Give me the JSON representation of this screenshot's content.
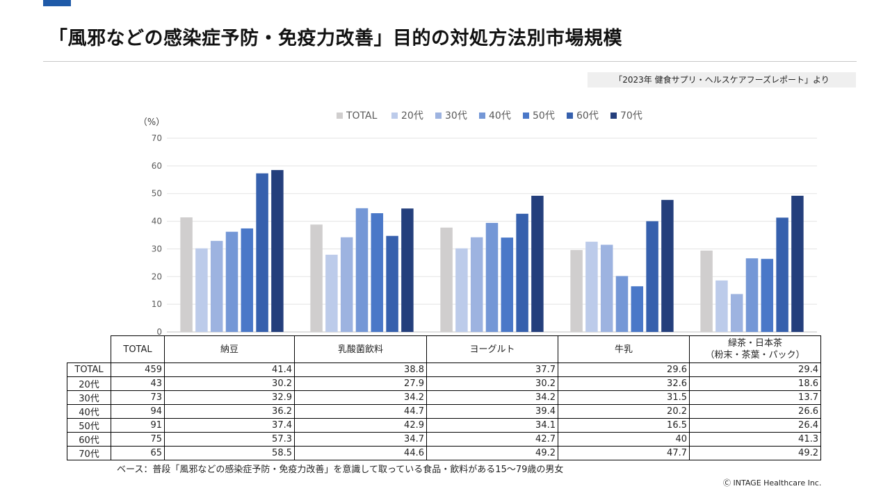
{
  "header": {
    "title": "「風邪などの感染症予防・免疫力改善」目的の対処方法別市場規模",
    "source": "「2023年 健食サプリ・ヘルスケアフーズレポート」より"
  },
  "chart_data": {
    "type": "bar",
    "ylabel": "（%）",
    "ylim": [
      0,
      70
    ],
    "yticks": [
      0,
      10,
      20,
      30,
      40,
      50,
      60,
      70
    ],
    "grid": true,
    "legend_position": "top",
    "categories": [
      "納豆",
      "乳酸菌飲料",
      "ヨーグルト",
      "牛乳",
      "緑茶・日本茶（粉末・茶葉・パック）"
    ],
    "series": [
      {
        "name": "TOTAL",
        "color": "#d0cece",
        "values": [
          41.4,
          38.8,
          37.7,
          29.6,
          29.4
        ]
      },
      {
        "name": "20代",
        "color": "#bccbea",
        "values": [
          30.2,
          27.9,
          30.2,
          32.6,
          18.6
        ]
      },
      {
        "name": "30代",
        "color": "#9db3e0",
        "values": [
          32.9,
          34.2,
          34.2,
          31.5,
          13.7
        ]
      },
      {
        "name": "40代",
        "color": "#7497d6",
        "values": [
          36.2,
          44.7,
          39.4,
          20.2,
          26.6
        ]
      },
      {
        "name": "50代",
        "color": "#4a78c8",
        "values": [
          37.4,
          42.9,
          34.1,
          16.5,
          26.4
        ]
      },
      {
        "name": "60代",
        "color": "#3660ad",
        "values": [
          57.3,
          34.7,
          42.7,
          40,
          41.3
        ]
      },
      {
        "name": "70代",
        "color": "#243f7c",
        "values": [
          58.5,
          44.6,
          49.2,
          47.7,
          49.2
        ]
      }
    ]
  },
  "table": {
    "headers": [
      "TOTAL",
      "納豆",
      "乳酸菌飲料",
      "ヨーグルト",
      "牛乳",
      "緑茶・日本茶",
      "（粉末・茶葉・パック）"
    ],
    "rows": [
      {
        "label": "TOTAL",
        "n": "459",
        "v": [
          "41.4",
          "38.8",
          "37.7",
          "29.6",
          "29.4"
        ]
      },
      {
        "label": "20代",
        "n": "43",
        "v": [
          "30.2",
          "27.9",
          "30.2",
          "32.6",
          "18.6"
        ]
      },
      {
        "label": "30代",
        "n": "73",
        "v": [
          "32.9",
          "34.2",
          "34.2",
          "31.5",
          "13.7"
        ]
      },
      {
        "label": "40代",
        "n": "94",
        "v": [
          "36.2",
          "44.7",
          "39.4",
          "20.2",
          "26.6"
        ]
      },
      {
        "label": "50代",
        "n": "91",
        "v": [
          "37.4",
          "42.9",
          "34.1",
          "16.5",
          "26.4"
        ]
      },
      {
        "label": "60代",
        "n": "75",
        "v": [
          "57.3",
          "34.7",
          "42.7",
          "40",
          "41.3"
        ]
      },
      {
        "label": "70代",
        "n": "65",
        "v": [
          "58.5",
          "44.6",
          "49.2",
          "47.7",
          "49.2"
        ]
      }
    ]
  },
  "footer": {
    "note": "ベース：普段「風邪などの感染症予防・免疫力改善」を意識して取っている食品・飲料がある15～79歳の男女",
    "copyright": "Ⓒ INTAGE Healthcare Inc."
  }
}
